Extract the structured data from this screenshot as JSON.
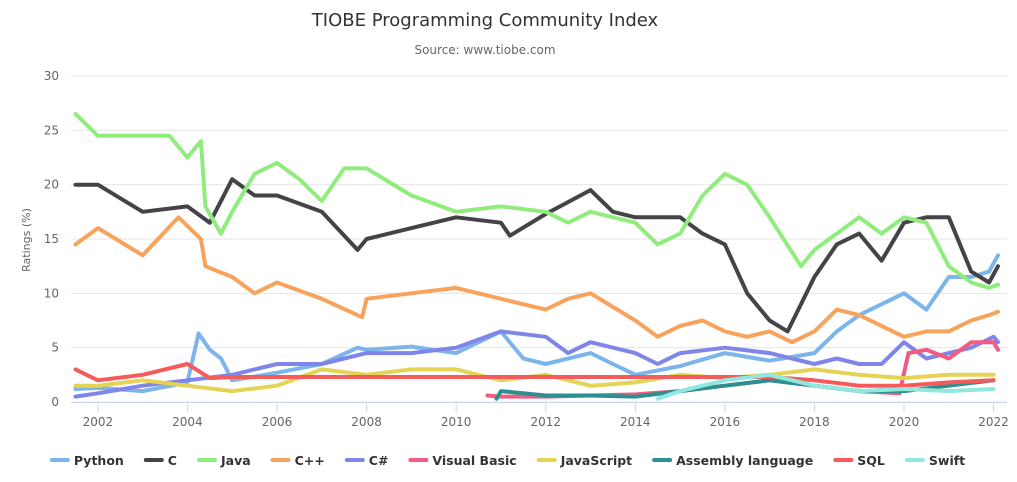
{
  "chart_data": {
    "type": "line",
    "title": "TIOBE Programming Community Index",
    "subtitle": "Source: www.tiobe.com",
    "ylabel": "Ratings (%)",
    "xlabel": "",
    "ylim": [
      0,
      30
    ],
    "yticks": [
      0,
      5,
      10,
      15,
      20,
      25,
      30
    ],
    "xlim": [
      2001.4,
      2022.3
    ],
    "xticks": [
      2002,
      2004,
      2006,
      2008,
      2010,
      2012,
      2014,
      2016,
      2018,
      2020,
      2022
    ],
    "grid": true,
    "legend_position": "bottom",
    "series": [
      {
        "name": "Python",
        "color": "#7cb5ec",
        "points": [
          [
            2001.5,
            1.2
          ],
          [
            2002,
            1.3
          ],
          [
            2003,
            1.0
          ],
          [
            2004,
            1.8
          ],
          [
            2004.25,
            6.3
          ],
          [
            2004.5,
            4.8
          ],
          [
            2004.75,
            4.0
          ],
          [
            2005,
            2.0
          ],
          [
            2006,
            2.7
          ],
          [
            2007,
            3.5
          ],
          [
            2007.8,
            5.0
          ],
          [
            2008,
            4.8
          ],
          [
            2009,
            5.1
          ],
          [
            2010,
            4.5
          ],
          [
            2011,
            6.5
          ],
          [
            2011.5,
            4.0
          ],
          [
            2012,
            3.5
          ],
          [
            2013,
            4.5
          ],
          [
            2013.5,
            3.5
          ],
          [
            2014,
            2.5
          ],
          [
            2015,
            3.3
          ],
          [
            2016,
            4.5
          ],
          [
            2017,
            3.8
          ],
          [
            2018,
            4.5
          ],
          [
            2018.5,
            6.5
          ],
          [
            2019,
            8.0
          ],
          [
            2019.5,
            9.0
          ],
          [
            2020,
            10.0
          ],
          [
            2020.5,
            8.5
          ],
          [
            2021,
            11.5
          ],
          [
            2021.5,
            11.5
          ],
          [
            2021.9,
            12.0
          ],
          [
            2022.1,
            13.5
          ]
        ]
      },
      {
        "name": "C",
        "color": "#434348",
        "points": [
          [
            2001.5,
            20.0
          ],
          [
            2002,
            20.0
          ],
          [
            2003,
            17.5
          ],
          [
            2004,
            18.0
          ],
          [
            2004.5,
            16.5
          ],
          [
            2005,
            20.5
          ],
          [
            2005.5,
            19.0
          ],
          [
            2006,
            19.0
          ],
          [
            2007,
            17.5
          ],
          [
            2007.8,
            14.0
          ],
          [
            2008,
            15.0
          ],
          [
            2009,
            16.0
          ],
          [
            2010,
            17.0
          ],
          [
            2011,
            16.5
          ],
          [
            2011.2,
            15.3
          ],
          [
            2012,
            17.3
          ],
          [
            2013,
            19.5
          ],
          [
            2013.5,
            17.5
          ],
          [
            2014,
            17.0
          ],
          [
            2015,
            17.0
          ],
          [
            2015.5,
            15.5
          ],
          [
            2016,
            14.5
          ],
          [
            2016.5,
            10.0
          ],
          [
            2017,
            7.5
          ],
          [
            2017.4,
            6.5
          ],
          [
            2018,
            11.5
          ],
          [
            2018.5,
            14.5
          ],
          [
            2019,
            15.5
          ],
          [
            2019.5,
            13.0
          ],
          [
            2020,
            16.5
          ],
          [
            2020.5,
            17.0
          ],
          [
            2021,
            17.0
          ],
          [
            2021.5,
            12.0
          ],
          [
            2021.9,
            11.0
          ],
          [
            2022.1,
            12.5
          ]
        ]
      },
      {
        "name": "Java",
        "color": "#90ed7d",
        "points": [
          [
            2001.5,
            26.5
          ],
          [
            2002,
            24.5
          ],
          [
            2003,
            24.5
          ],
          [
            2003.6,
            24.5
          ],
          [
            2004,
            22.5
          ],
          [
            2004.3,
            24.0
          ],
          [
            2004.4,
            18.0
          ],
          [
            2004.75,
            15.5
          ],
          [
            2005,
            17.5
          ],
          [
            2005.5,
            21.0
          ],
          [
            2006,
            22.0
          ],
          [
            2006.5,
            20.5
          ],
          [
            2007,
            18.5
          ],
          [
            2007.5,
            21.5
          ],
          [
            2008,
            21.5
          ],
          [
            2009,
            19.0
          ],
          [
            2010,
            17.5
          ],
          [
            2011,
            18.0
          ],
          [
            2012,
            17.5
          ],
          [
            2012.5,
            16.5
          ],
          [
            2013,
            17.5
          ],
          [
            2014,
            16.5
          ],
          [
            2014.5,
            14.5
          ],
          [
            2015,
            15.5
          ],
          [
            2015.5,
            19.0
          ],
          [
            2016,
            21.0
          ],
          [
            2016.5,
            20.0
          ],
          [
            2017,
            17.0
          ],
          [
            2017.7,
            12.5
          ],
          [
            2018,
            14.0
          ],
          [
            2018.5,
            15.5
          ],
          [
            2019,
            17.0
          ],
          [
            2019.5,
            15.5
          ],
          [
            2020,
            17.0
          ],
          [
            2020.5,
            16.5
          ],
          [
            2021,
            12.5
          ],
          [
            2021.5,
            11.0
          ],
          [
            2021.9,
            10.5
          ],
          [
            2022.1,
            10.8
          ]
        ]
      },
      {
        "name": "C++",
        "color": "#f7a35c",
        "points": [
          [
            2001.5,
            14.5
          ],
          [
            2002,
            16.0
          ],
          [
            2003,
            13.5
          ],
          [
            2003.8,
            17.0
          ],
          [
            2004.3,
            15.0
          ],
          [
            2004.4,
            12.5
          ],
          [
            2005,
            11.5
          ],
          [
            2005.5,
            10.0
          ],
          [
            2006,
            11.0
          ],
          [
            2007,
            9.5
          ],
          [
            2007.9,
            7.8
          ],
          [
            2008,
            9.5
          ],
          [
            2009,
            10.0
          ],
          [
            2010,
            10.5
          ],
          [
            2011,
            9.5
          ],
          [
            2012,
            8.5
          ],
          [
            2012.5,
            9.5
          ],
          [
            2013,
            10.0
          ],
          [
            2014,
            7.5
          ],
          [
            2014.5,
            6.0
          ],
          [
            2015,
            7.0
          ],
          [
            2015.5,
            7.5
          ],
          [
            2016,
            6.5
          ],
          [
            2016.5,
            6.0
          ],
          [
            2017,
            6.5
          ],
          [
            2017.5,
            5.5
          ],
          [
            2018,
            6.5
          ],
          [
            2018.5,
            8.5
          ],
          [
            2019,
            8.0
          ],
          [
            2019.5,
            7.0
          ],
          [
            2020,
            6.0
          ],
          [
            2020.5,
            6.5
          ],
          [
            2021,
            6.5
          ],
          [
            2021.5,
            7.5
          ],
          [
            2021.9,
            8.0
          ],
          [
            2022.1,
            8.3
          ]
        ]
      },
      {
        "name": "C#",
        "color": "#8085e9",
        "points": [
          [
            2001.5,
            0.5
          ],
          [
            2002,
            0.8
          ],
          [
            2003,
            1.5
          ],
          [
            2004,
            2.0
          ],
          [
            2005,
            2.5
          ],
          [
            2006,
            3.5
          ],
          [
            2007,
            3.5
          ],
          [
            2008,
            4.5
          ],
          [
            2009,
            4.5
          ],
          [
            2010,
            5.0
          ],
          [
            2011,
            6.5
          ],
          [
            2012,
            6.0
          ],
          [
            2012.5,
            4.5
          ],
          [
            2013,
            5.5
          ],
          [
            2014,
            4.5
          ],
          [
            2014.5,
            3.5
          ],
          [
            2015,
            4.5
          ],
          [
            2016,
            5.0
          ],
          [
            2017,
            4.5
          ],
          [
            2018,
            3.5
          ],
          [
            2018.5,
            4.0
          ],
          [
            2019,
            3.5
          ],
          [
            2019.5,
            3.5
          ],
          [
            2020,
            5.5
          ],
          [
            2020.5,
            4.0
          ],
          [
            2021,
            4.5
          ],
          [
            2021.5,
            5.0
          ],
          [
            2022,
            6.0
          ],
          [
            2022.1,
            5.5
          ]
        ]
      },
      {
        "name": "Visual Basic",
        "color": "#f15c80",
        "points": [
          [
            2010.7,
            0.6
          ],
          [
            2011,
            0.5
          ],
          [
            2012,
            0.5
          ],
          [
            2013,
            0.6
          ],
          [
            2014,
            0.7
          ],
          [
            2015,
            1.0
          ],
          [
            2016,
            1.5
          ],
          [
            2017,
            2.0
          ],
          [
            2018,
            1.5
          ],
          [
            2019,
            1.0
          ],
          [
            2019.9,
            0.8
          ],
          [
            2020.1,
            4.5
          ],
          [
            2020.5,
            4.8
          ],
          [
            2021,
            4.0
          ],
          [
            2021.5,
            5.5
          ],
          [
            2022,
            5.5
          ],
          [
            2022.1,
            4.8
          ]
        ]
      },
      {
        "name": "JavaScript",
        "color": "#e4d354",
        "points": [
          [
            2001.5,
            1.5
          ],
          [
            2002,
            1.5
          ],
          [
            2003,
            2.0
          ],
          [
            2004,
            1.5
          ],
          [
            2005,
            1.0
          ],
          [
            2006,
            1.5
          ],
          [
            2007,
            3.0
          ],
          [
            2008,
            2.5
          ],
          [
            2009,
            3.0
          ],
          [
            2010,
            3.0
          ],
          [
            2011,
            2.0
          ],
          [
            2012,
            2.5
          ],
          [
            2013,
            1.5
          ],
          [
            2014,
            1.8
          ],
          [
            2015,
            2.5
          ],
          [
            2016,
            2.2
          ],
          [
            2017,
            2.5
          ],
          [
            2018,
            3.0
          ],
          [
            2019,
            2.5
          ],
          [
            2020,
            2.2
          ],
          [
            2021,
            2.5
          ],
          [
            2022,
            2.5
          ]
        ]
      },
      {
        "name": "Assembly language",
        "color": "#2b908f",
        "points": [
          [
            2010.9,
            0.3
          ],
          [
            2011,
            1.0
          ],
          [
            2012,
            0.6
          ],
          [
            2013,
            0.6
          ],
          [
            2014,
            0.5
          ],
          [
            2015,
            1.0
          ],
          [
            2016,
            1.5
          ],
          [
            2017,
            2.0
          ],
          [
            2018,
            1.5
          ],
          [
            2019,
            1.0
          ],
          [
            2020,
            1.0
          ],
          [
            2021,
            1.5
          ],
          [
            2022,
            2.0
          ]
        ]
      },
      {
        "name": "SQL",
        "color": "#f45b5b",
        "points": [
          [
            2001.5,
            3.0
          ],
          [
            2002,
            2.0
          ],
          [
            2003,
            2.5
          ],
          [
            2004,
            3.5
          ],
          [
            2004.5,
            2.2
          ],
          [
            2005,
            2.3
          ],
          [
            2006,
            2.3
          ],
          [
            2007,
            2.3
          ],
          [
            2008,
            2.3
          ],
          [
            2009,
            2.3
          ],
          [
            2010,
            2.3
          ],
          [
            2011,
            2.3
          ],
          [
            2012,
            2.3
          ],
          [
            2013,
            2.3
          ],
          [
            2014,
            2.3
          ],
          [
            2015,
            2.3
          ],
          [
            2016,
            2.3
          ],
          [
            2017,
            2.3
          ],
          [
            2018,
            2.0
          ],
          [
            2019,
            1.5
          ],
          [
            2020,
            1.5
          ],
          [
            2021,
            1.8
          ],
          [
            2022,
            2.0
          ]
        ]
      },
      {
        "name": "Swift",
        "color": "#91e8e1",
        "points": [
          [
            2014.5,
            0.3
          ],
          [
            2015,
            1.0
          ],
          [
            2016,
            2.0
          ],
          [
            2017,
            2.5
          ],
          [
            2018,
            1.5
          ],
          [
            2019,
            1.0
          ],
          [
            2020,
            1.2
          ],
          [
            2021,
            1.0
          ],
          [
            2022,
            1.2
          ]
        ]
      }
    ]
  }
}
